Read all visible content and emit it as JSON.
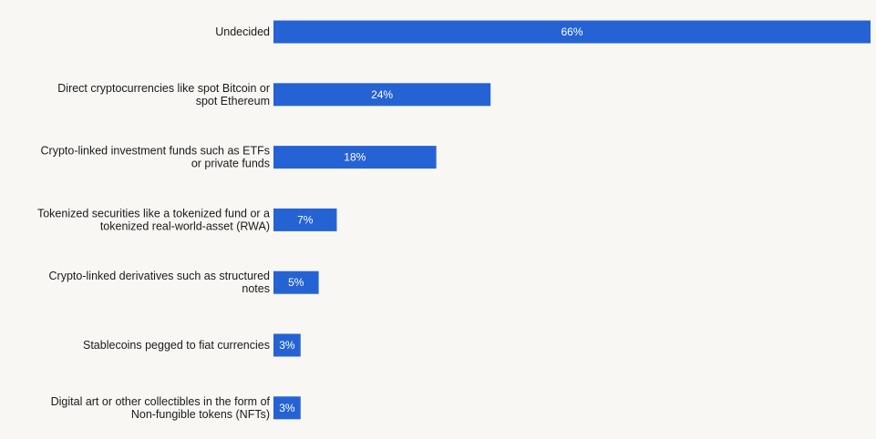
{
  "chart_data": {
    "type": "bar",
    "orientation": "horizontal",
    "categories": [
      [
        "Undecided"
      ],
      [
        "Direct cryptocurrencies like spot Bitcoin or",
        "spot Ethereum"
      ],
      [
        "Crypto-linked investment funds such as ETFs",
        "or private funds"
      ],
      [
        "Tokenized securities like a tokenized fund or a",
        "tokenized real-world-asset (RWA)"
      ],
      [
        "Crypto-linked derivatives such as structured",
        "notes"
      ],
      [
        "Stablecoins pegged to fiat currencies"
      ],
      [
        "Digital art or other collectibles in the form of",
        "Non-fungible tokens (NFTs)"
      ]
    ],
    "values": [
      66,
      24,
      18,
      7,
      5,
      3,
      3
    ],
    "value_labels": [
      "66%",
      "24%",
      "18%",
      "7%",
      "5%",
      "3%",
      "3%"
    ],
    "xlim": [
      0,
      66
    ],
    "grid": false,
    "legend": "none",
    "colors": {
      "bar": "#2563d4",
      "background": "#f8f7f4",
      "label_text": "#1a1a1a",
      "value_text": "#ffffff"
    }
  }
}
